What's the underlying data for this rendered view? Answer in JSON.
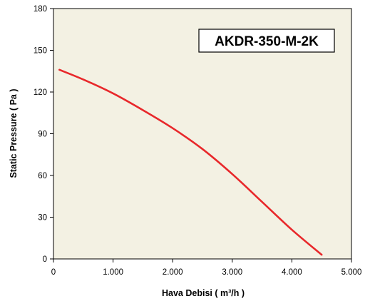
{
  "chart_data": {
    "type": "line",
    "title": "AKDR-350-M-2K",
    "xlabel": "Hava Debisi ( m³/h )",
    "ylabel": "Static Pressure ( Pa )",
    "xlim": [
      0,
      5000
    ],
    "ylim": [
      0,
      180
    ],
    "x_tick_labels": [
      "0",
      "1.000",
      "2.000",
      "3.000",
      "4.000",
      "5.000"
    ],
    "y_tick_labels": [
      "0",
      "30",
      "60",
      "90",
      "120",
      "150",
      "180"
    ],
    "grid": false,
    "plot_background": "#f3f1e3",
    "series": [
      {
        "color": "#e8282b",
        "x": [
          100,
          500,
          1000,
          1500,
          2000,
          2500,
          3000,
          3500,
          4000,
          4500
        ],
        "y": [
          136,
          129,
          119,
          107,
          94,
          79,
          61,
          41,
          21,
          3
        ]
      }
    ]
  }
}
